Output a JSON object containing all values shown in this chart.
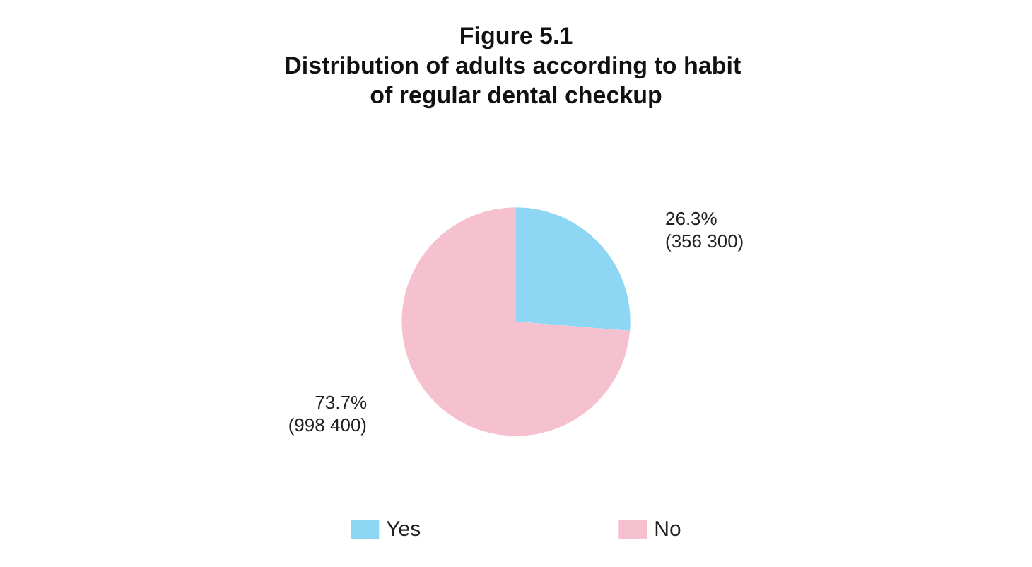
{
  "chart_data": {
    "type": "pie",
    "title": "Figure 5.1",
    "subtitle": "Distribution of adults according to habit of regular dental checkup",
    "categories": [
      "Yes",
      "No"
    ],
    "values": [
      356300,
      998400
    ],
    "colors": [
      "#8dd6f4",
      "#f6c1cf"
    ],
    "value_labels": [
      "26.3%\n(356 300)",
      "73.7%\n(998 400)"
    ],
    "legend": "bottom"
  }
}
